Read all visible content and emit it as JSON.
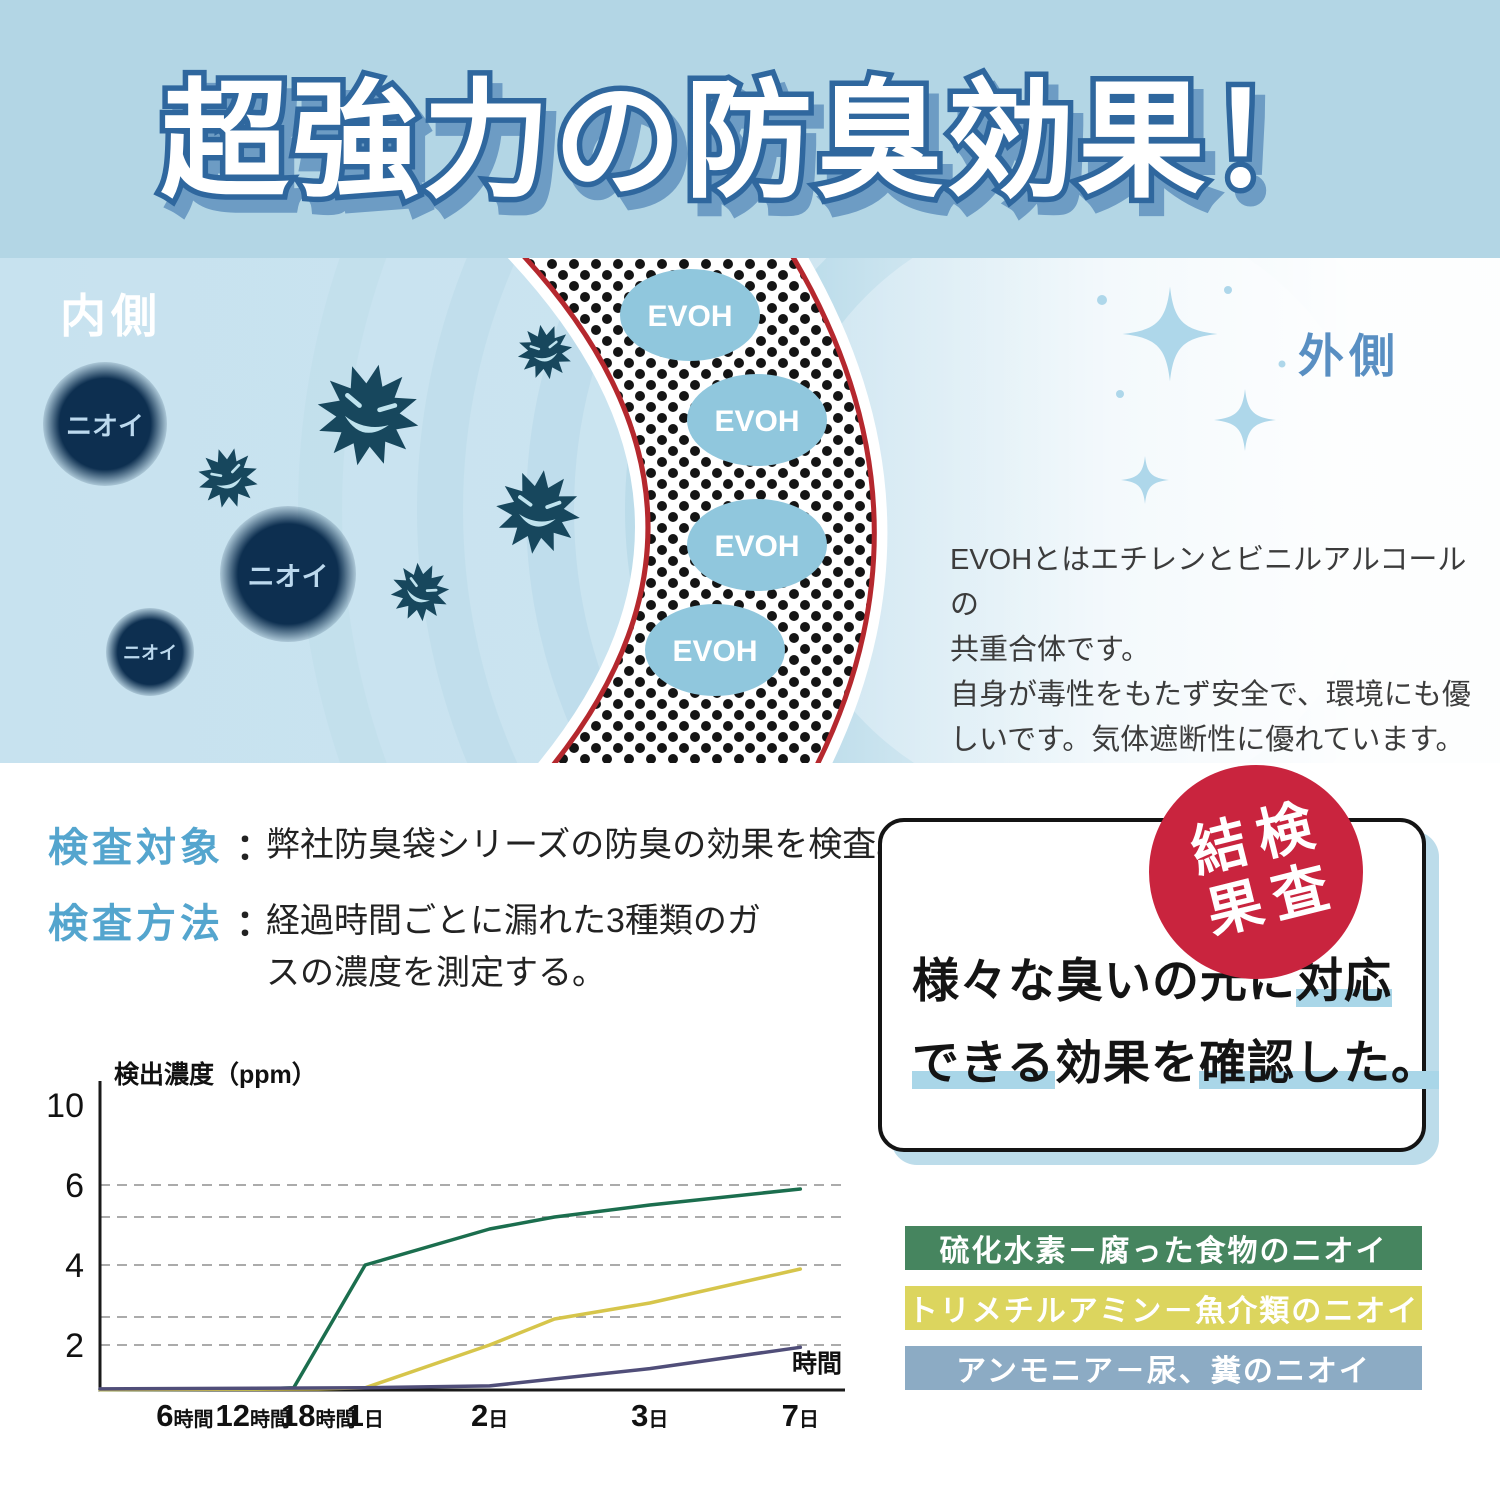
{
  "banner": {
    "title": "超強力の防臭効果！"
  },
  "illustration": {
    "inside_label": "内側",
    "outside_label": "外側",
    "odor_particles": [
      {
        "label": "ニオイ"
      },
      {
        "label": "ニオイ"
      },
      {
        "label": "ニオイ"
      }
    ],
    "evoh_labels": [
      "EVOH",
      "EVOH",
      "EVOH",
      "EVOH"
    ],
    "description_lines": [
      "EVOHとはエチレンとビニルアルコールの",
      "共重合体です。",
      "自身が毒性をもたず安全で、環境にも優",
      "しいです。気体遮断性に優れています。"
    ]
  },
  "inspection": {
    "subject_label": "検査対象",
    "subject_colon": "：",
    "subject_text": "弊社防臭袋シリーズの防臭の効果を検査。",
    "method_label": "検査方法",
    "method_colon": "：",
    "method_lines": [
      "経過時間ごとに漏れた3種類のガ",
      "スの濃度を測定する。"
    ]
  },
  "result": {
    "badge_chars": [
      "検査",
      "結果"
    ],
    "badge_color": "#c9243e",
    "highlight_color": "#a9d6e8",
    "statement": {
      "line1_pre": "様々な臭いの元に",
      "line1_hl": "対応",
      "line2_hl1": "できる",
      "line2_mid": "効果を",
      "line2_hl2": "確認した。"
    }
  },
  "chart_data": {
    "type": "line",
    "title": "",
    "ylabel": "検出濃度（ppm）",
    "xlabel": "時間",
    "ylim": [
      0,
      10
    ],
    "grid": "dashed-horizontal",
    "legend_position": "outside-right",
    "y_ticks": [
      10,
      6,
      4,
      2
    ],
    "gridline_values": [
      6,
      5.2,
      4,
      2.7,
      2
    ],
    "y_axis_anchors": [
      [
        0,
        0
      ],
      [
        2,
        45
      ],
      [
        4,
        125
      ],
      [
        6,
        205
      ],
      [
        10,
        285
      ]
    ],
    "x_ticks": [
      {
        "num": "6",
        "unit": "時間",
        "frac": 0.114
      },
      {
        "num": "12",
        "unit": "時間",
        "frac": 0.205
      },
      {
        "num": "18",
        "unit": "時間",
        "frac": 0.293
      },
      {
        "num": "1",
        "unit": "日",
        "frac": 0.356
      },
      {
        "num": "2",
        "unit": "日",
        "frac": 0.523
      },
      {
        "num": "3",
        "unit": "日",
        "frac": 0.738
      },
      {
        "num": "7",
        "unit": "日",
        "frac": 0.94
      }
    ],
    "series": [
      {
        "name": "硫化水素（腐った食物のニオイ）",
        "color": "#1b6e4e",
        "values_at_ticks": [
          0,
          0,
          0.1,
          4.0,
          4.9,
          5.5,
          5.9
        ],
        "points": [
          [
            0,
            0.02
          ],
          [
            0.205,
            0.03
          ],
          [
            0.26,
            0.1
          ],
          [
            0.356,
            4.0
          ],
          [
            0.523,
            4.9
          ],
          [
            0.61,
            5.2
          ],
          [
            0.738,
            5.5
          ],
          [
            0.94,
            5.9
          ]
        ]
      },
      {
        "name": "トリメチルアミン（魚介類のニオイ）",
        "color": "#d6c54b",
        "values_at_ticks": [
          0,
          0,
          0,
          0.1,
          2.0,
          3.05,
          3.9
        ],
        "points": [
          [
            0,
            0.02
          ],
          [
            0.293,
            0.05
          ],
          [
            0.356,
            0.1
          ],
          [
            0.523,
            2.0
          ],
          [
            0.61,
            2.65
          ],
          [
            0.738,
            3.05
          ],
          [
            0.94,
            3.9
          ]
        ]
      },
      {
        "name": "アンモニア（尿、糞のニオイ）",
        "color": "#504e79",
        "values_at_ticks": [
          0.05,
          0.05,
          0.08,
          0.1,
          0.18,
          0.95,
          1.9
        ],
        "points": [
          [
            0,
            0.05
          ],
          [
            0.356,
            0.1
          ],
          [
            0.523,
            0.18
          ],
          [
            0.738,
            0.95
          ],
          [
            0.94,
            1.9
          ]
        ]
      }
    ]
  },
  "legend": [
    {
      "label": "硫化水素－腐った食物のニオイ",
      "color": "#46855f"
    },
    {
      "label": "トリメチルアミン－魚介類のニオイ",
      "color": "#dcd55e"
    },
    {
      "label": "アンモニア－尿、糞のニオイ",
      "color": "#8cabc4"
    }
  ]
}
